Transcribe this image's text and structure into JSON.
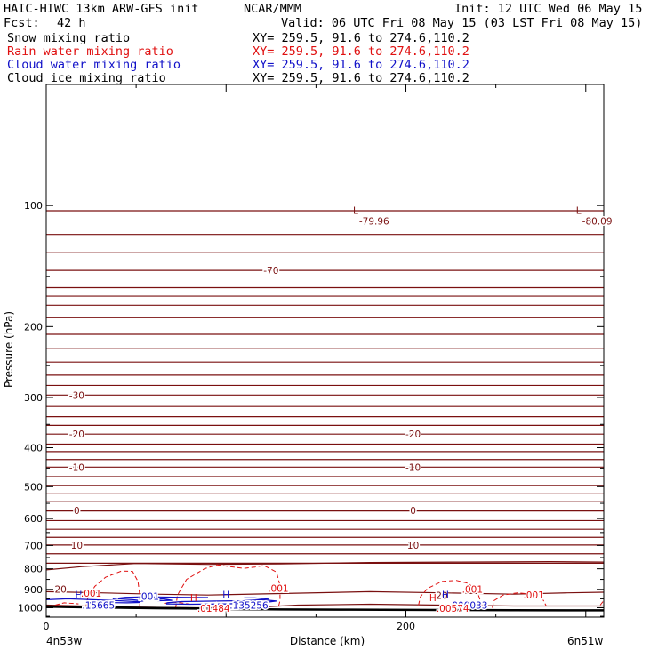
{
  "header": {
    "title": "HAIC-HIWC 13km ARW-GFS init",
    "org": "NCAR/MMM",
    "init": "Init: 12 UTC Wed 06 May 15",
    "fcst_label": "Fcst:",
    "fcst_value": "42 h",
    "valid": "Valid: 06 UTC Fri 08 May 15 (03 LST Fri 08 May 15)"
  },
  "fields": [
    {
      "name": "Snow mixing ratio",
      "xy": "XY= 259.5, 91.6 to 274.6,110.2",
      "color": "#000000"
    },
    {
      "name": "Rain water mixing ratio",
      "xy": "XY= 259.5, 91.6 to 274.6,110.2",
      "color": "#e01010"
    },
    {
      "name": "Cloud water mixing ratio",
      "xy": "XY= 259.5, 91.6 to 274.6,110.2",
      "color": "#1010c8"
    },
    {
      "name": "Cloud ice mixing ratio",
      "xy": "XY= 259.5, 91.6 to 274.6,110.2",
      "color": "#000000"
    }
  ],
  "colors": {
    "temperature": "#7a1010",
    "rain": "#e01010",
    "cloud": "#1010c8",
    "terrain": "#000000"
  },
  "chart_data": {
    "type": "line",
    "xlabel": "Distance (km)",
    "ylabel": "Pressure (hPa)",
    "xlim": [
      0,
      310
    ],
    "ylim": [
      1055,
      50
    ],
    "yscale": "log",
    "x_ticks": [
      0,
      100,
      200,
      300
    ],
    "x_tick_labels": [
      "0",
      "",
      "200",
      ""
    ],
    "y_ticks": [
      100,
      200,
      300,
      400,
      500,
      600,
      700,
      800,
      900,
      1000
    ],
    "endpoint_labels": [
      "4n53w",
      "6n51w"
    ],
    "temperature_isotherms": [
      {
        "label": "-70",
        "p": 145
      },
      {
        "label": "-30",
        "p": 296
      },
      {
        "label": "-20",
        "p": 370
      },
      {
        "label": "-10",
        "p": 447
      },
      {
        "label": "0",
        "p": 573
      },
      {
        "label": "10",
        "p": 698
      },
      {
        "label": "20",
        "p": 922
      }
    ],
    "extrema": [
      {
        "series": "temperature",
        "type": "L",
        "value": "-79.96",
        "x": 172,
        "p": 107
      },
      {
        "series": "temperature",
        "type": "L",
        "value": "-80.09",
        "x": 296,
        "p": 107
      },
      {
        "series": "cloud",
        "type": "H",
        "value": ".15665",
        "x": 18,
        "p": 965
      },
      {
        "series": "rain",
        "type": "H",
        "value": ".01484",
        "x": 82,
        "p": 983
      },
      {
        "series": "cloud",
        "type": "H",
        "value": ".135256",
        "x": 100,
        "p": 965
      },
      {
        "series": "cloud",
        "type": "H",
        "value": ".000033",
        "x": 222,
        "p": 965
      },
      {
        "series": "rain",
        "type": "H",
        "value": ".00574",
        "x": 215,
        "p": 983
      }
    ],
    "contour_labels": [
      {
        "series": "rain",
        "value": ".001",
        "x": 25,
        "p": 920
      },
      {
        "series": "rain",
        "value": ".001",
        "x": 129,
        "p": 895
      },
      {
        "series": "rain",
        "value": ".001",
        "x": 237,
        "p": 898
      },
      {
        "series": "rain",
        "value": ".001",
        "x": 271,
        "p": 930
      },
      {
        "series": "cloud",
        "value": ".001",
        "x": 57,
        "p": 935
      }
    ]
  }
}
